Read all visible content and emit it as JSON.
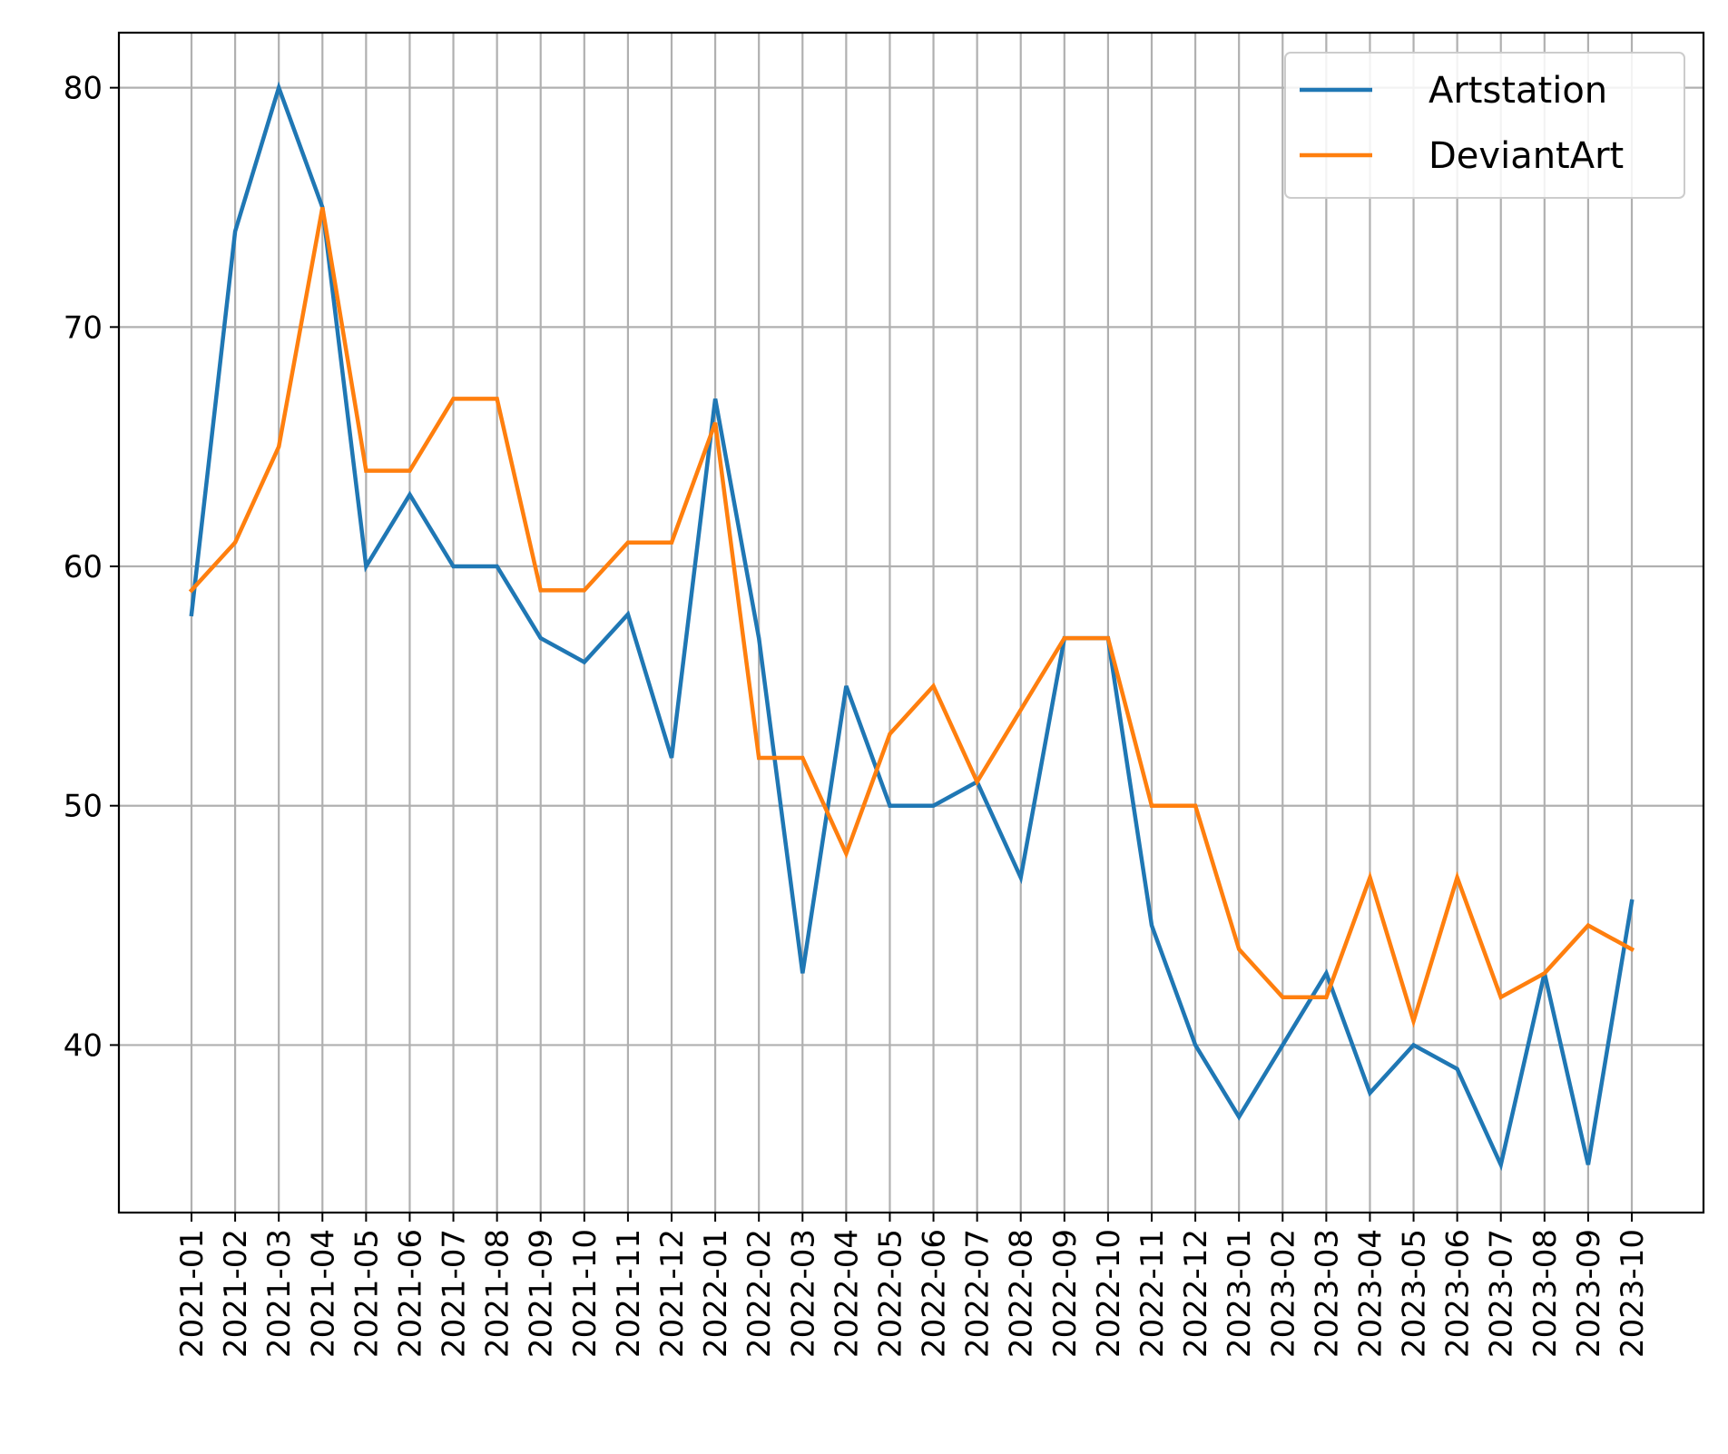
{
  "chart_data": {
    "type": "line",
    "title": "",
    "xlabel": "",
    "ylabel": "",
    "ylim": [
      33,
      82.3
    ],
    "yticks": [
      40,
      50,
      60,
      70,
      80
    ],
    "grid": true,
    "legend_position": "top-right",
    "categories": [
      "2021-01",
      "2021-02",
      "2021-03",
      "2021-04",
      "2021-05",
      "2021-06",
      "2021-07",
      "2021-08",
      "2021-09",
      "2021-10",
      "2021-11",
      "2021-12",
      "2022-01",
      "2022-02",
      "2022-03",
      "2022-04",
      "2022-05",
      "2022-06",
      "2022-07",
      "2022-08",
      "2022-09",
      "2022-10",
      "2022-11",
      "2022-12",
      "2023-01",
      "2023-02",
      "2023-03",
      "2023-04",
      "2023-05",
      "2023-06",
      "2023-07",
      "2023-08",
      "2023-09",
      "2023-10"
    ],
    "series": [
      {
        "name": "Artstation",
        "color": "#1f77b4",
        "values": [
          58,
          74,
          80,
          75,
          60,
          63,
          60,
          60,
          57,
          56,
          58,
          52,
          67,
          57,
          43,
          55,
          50,
          50,
          51,
          47,
          57,
          57,
          45,
          40,
          37,
          40,
          43,
          38,
          40,
          39,
          35,
          43,
          35,
          46
        ]
      },
      {
        "name": "DeviantArt",
        "color": "#ff7f0e",
        "values": [
          59,
          61,
          65,
          75,
          64,
          64,
          67,
          67,
          59,
          59,
          61,
          61,
          66,
          52,
          52,
          48,
          53,
          55,
          51,
          54,
          57,
          57,
          50,
          50,
          44,
          42,
          42,
          47,
          41,
          47,
          42,
          43,
          45,
          44
        ]
      }
    ]
  }
}
